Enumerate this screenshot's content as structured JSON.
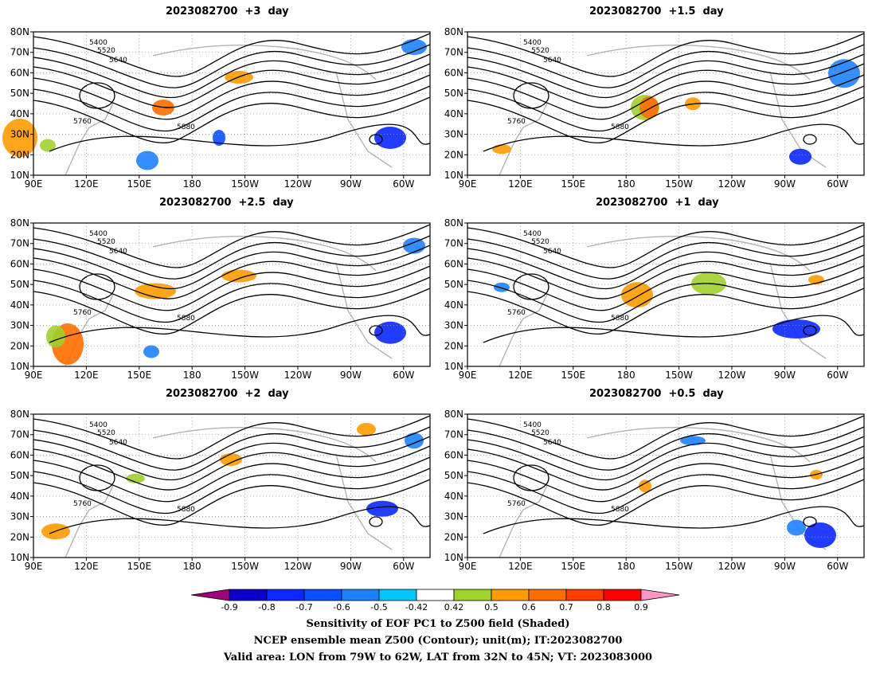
{
  "panels": [
    {
      "id": "p3",
      "title": "2023082700  +3  day"
    },
    {
      "id": "p15",
      "title": "2023082700  +1.5  day"
    },
    {
      "id": "p25",
      "title": "2023082700  +2.5  day"
    },
    {
      "id": "p1",
      "title": "2023082700  +1  day"
    },
    {
      "id": "p2",
      "title": "2023082700  +2  day"
    },
    {
      "id": "p05",
      "title": "2023082700  +0.5  day"
    }
  ],
  "axes": {
    "lat_labels": [
      "10N",
      "20N",
      "30N",
      "40N",
      "50N",
      "60N",
      "70N",
      "80N"
    ],
    "lon_labels": [
      "90E",
      "120E",
      "150E",
      "180",
      "150W",
      "120W",
      "90W",
      "60W"
    ]
  },
  "colorbar": {
    "tick_labels": [
      "-0.9",
      "-0.8",
      "-0.7",
      "-0.6",
      "-0.5",
      "-0.42",
      "0.42",
      "0.5",
      "0.6",
      "0.7",
      "0.8",
      "0.9"
    ],
    "colors": [
      "#a0007a",
      "#0a00c8",
      "#0a28ff",
      "#0a50ff",
      "#1e82ff",
      "#00c8ff",
      "#ffffff",
      "#a0d22d",
      "#ff9b00",
      "#ff6e00",
      "#ff3c00",
      "#ff0000",
      "#ff96c8"
    ]
  },
  "contour_labels": [
    "5400",
    "5520",
    "5640",
    "5760",
    "5880"
  ],
  "caption": {
    "line1": "Sensitivity of EOF PC1 to Z500 field (Shaded)",
    "line2": "NCEP ensemble mean Z500 (Contour); unit(m); IT:2023082700",
    "line3": "Valid area: LON from 79W to 62W, LAT from 32N to 45N; VT: 2023083000"
  }
}
